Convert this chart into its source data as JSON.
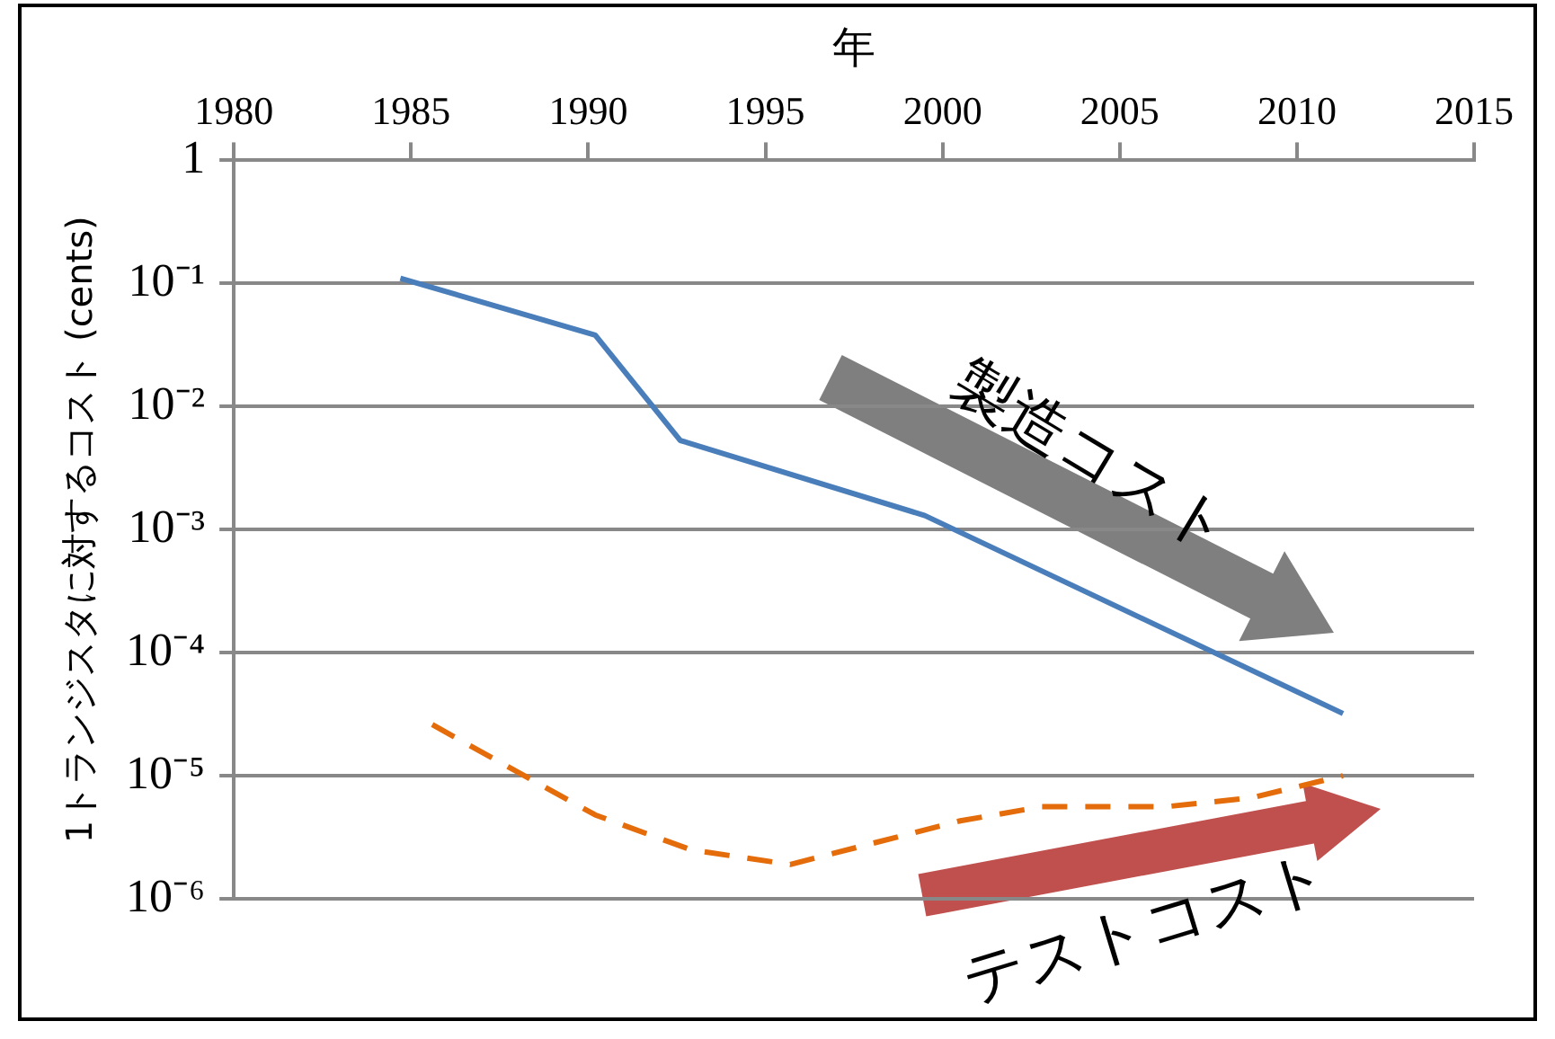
{
  "chart_data": {
    "type": "line",
    "xlabel": "年",
    "ylabel": "1トランジスタに対するコスト (cents)",
    "xlim": [
      1980,
      2015
    ],
    "xticks": [
      1980,
      1985,
      1990,
      1995,
      2000,
      2005,
      2010,
      2015
    ],
    "ylim": [
      1e-06,
      1
    ],
    "yticks": [
      {
        "value": 1,
        "label": "1"
      },
      {
        "value": 0.1,
        "label": "10⁻¹"
      },
      {
        "value": 0.01,
        "label": "10⁻²"
      },
      {
        "value": 0.001,
        "label": "10⁻³"
      },
      {
        "value": 0.0001,
        "label": "10⁻⁴"
      },
      {
        "value": 1e-05,
        "label": "10⁻⁵"
      },
      {
        "value": 1e-06,
        "label": "10⁻⁶"
      }
    ],
    "log": "y",
    "grid": "y",
    "legend": false,
    "marker": "none",
    "series": [
      {
        "color": "#4a7ebb",
        "line_style": "solid",
        "x": [
          1984.7,
          1990.2,
          1992.6,
          1999.5,
          2011.3
        ],
        "values": [
          0.11,
          0.038,
          0.0053,
          0.0013,
          3.2e-05
        ]
      },
      {
        "color": "#e46c0a",
        "line_style": "dashed",
        "x": [
          1985.6,
          1990.2,
          1992.9,
          1995.7,
          2000.5,
          2002.8,
          2006.3,
          2008.7,
          2011.3
        ],
        "values": [
          2.6e-05,
          4.8e-06,
          2.5e-06,
          1.9e-06,
          4.3e-06,
          5.6e-06,
          5.6e-06,
          6.6e-06,
          1e-05
        ]
      }
    ],
    "annotations": [
      "製造コスト",
      "テストコスト"
    ]
  }
}
